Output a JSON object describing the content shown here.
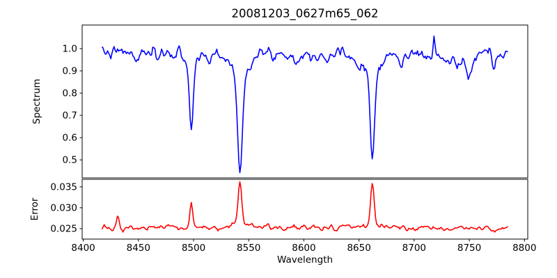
{
  "figure": {
    "title": "20081203_0627m65_062",
    "background": "#ffffff",
    "text_color": "#000000"
  },
  "chart_data": [
    {
      "type": "line",
      "name": "spectrum",
      "ylabel": "Spectrum",
      "line_color": "#0000ff",
      "grid": false,
      "legend": "none",
      "xlim": [
        8399,
        8803
      ],
      "ylim": [
        0.419,
        1.106
      ],
      "yticks": [
        1.0,
        0.9,
        0.8,
        0.7,
        0.6,
        0.5
      ],
      "yticklabels": [
        "1.0",
        "0.9",
        "0.8",
        "0.7",
        "0.6",
        "0.5"
      ],
      "x_start": 8417,
      "x_end": 8785,
      "x_step": 1,
      "continuum": 0.982,
      "continuum_slope": -3e-05,
      "noise_sigma": 0.013,
      "noise_scale_power": 2,
      "noise_seed": 7,
      "absorption_lines": [
        {
          "center": 8448.0,
          "depth": 0.055,
          "sigma": 1.5
        },
        {
          "center": 8468.0,
          "depth": 0.045,
          "sigma": 1.5
        },
        {
          "center": 8498.0,
          "depth": 0.295,
          "sigma": 1.7
        },
        {
          "center": 8498.0,
          "depth": 0.05,
          "sigma": 5.0
        },
        {
          "center": 8514.0,
          "depth": 0.045,
          "sigma": 1.5
        },
        {
          "center": 8542.1,
          "depth": 0.46,
          "sigma": 2.2
        },
        {
          "center": 8542.1,
          "depth": 0.08,
          "sigma": 8.0
        },
        {
          "center": 8594.0,
          "depth": 0.05,
          "sigma": 1.8
        },
        {
          "center": 8621.0,
          "depth": 0.035,
          "sigma": 1.5
        },
        {
          "center": 8649.0,
          "depth": 0.055,
          "sigma": 1.8
        },
        {
          "center": 8662.1,
          "depth": 0.4,
          "sigma": 2.0
        },
        {
          "center": 8662.1,
          "depth": 0.07,
          "sigma": 7.0
        },
        {
          "center": 8688.0,
          "depth": 0.06,
          "sigma": 1.8
        },
        {
          "center": 8718.0,
          "depth": -0.075,
          "sigma": 0.9
        },
        {
          "center": 8736.0,
          "depth": 0.035,
          "sigma": 10.0
        },
        {
          "center": 8750.0,
          "depth": 0.09,
          "sigma": 2.5
        },
        {
          "center": 8772.0,
          "depth": 0.055,
          "sigma": 1.5
        }
      ]
    },
    {
      "type": "line",
      "name": "error",
      "ylabel": "Error",
      "xlabel": "Wavelength",
      "line_color": "#ff0000",
      "grid": false,
      "legend": "none",
      "xlim": [
        8399,
        8803
      ],
      "ylim": [
        0.0225,
        0.0368
      ],
      "yticks": [
        0.035,
        0.03,
        0.025
      ],
      "yticklabels": [
        "0.035",
        "0.030",
        "0.025"
      ],
      "xticks": [
        8400,
        8450,
        8500,
        8550,
        8600,
        8650,
        8700,
        8750,
        8800
      ],
      "xticklabels": [
        "8400",
        "8450",
        "8500",
        "8550",
        "8600",
        "8650",
        "8700",
        "8750",
        "8800"
      ],
      "x_start": 8417,
      "x_end": 8785,
      "x_step": 1,
      "baseline": 0.0249,
      "noise_sigma": 0.00032,
      "noise_scale_power": 1,
      "noise_seed": 13,
      "peaks": [
        {
          "center": 8431.0,
          "height": 0.0026,
          "sigma": 1.2
        },
        {
          "center": 8498.0,
          "height": 0.0058,
          "sigma": 1.3
        },
        {
          "center": 8542.1,
          "height": 0.0098,
          "sigma": 1.6
        },
        {
          "center": 8542.1,
          "height": 0.001,
          "sigma": 6.0
        },
        {
          "center": 8600.0,
          "height": 0.0004,
          "sigma": 120.0
        },
        {
          "center": 8662.1,
          "height": 0.0093,
          "sigma": 1.5
        },
        {
          "center": 8662.1,
          "height": 0.0009,
          "sigma": 6.0
        }
      ]
    }
  ]
}
